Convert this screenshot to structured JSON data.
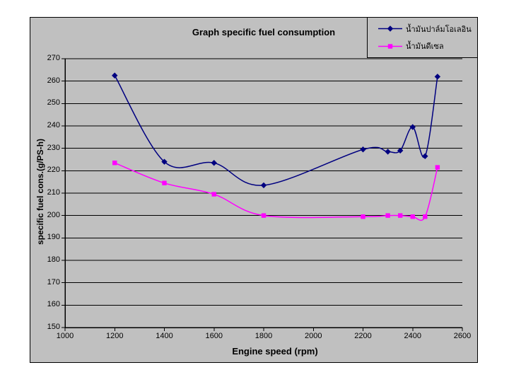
{
  "window": {
    "background": "#ffffff"
  },
  "chart": {
    "background": "#c0c0c0",
    "border_color": "#000000",
    "grid_color": "#000000",
    "axis_color": "#000000",
    "text_color": "#000000"
  },
  "chart_data": {
    "type": "line",
    "title": "Graph specific fuel consumption",
    "xlabel": "Engine speed (rpm)",
    "ylabel": "specific fuel cons.(g/PS-h)",
    "xlim": [
      1000,
      2600
    ],
    "ylim": [
      150,
      270
    ],
    "x_ticks": [
      1000,
      1200,
      1400,
      1600,
      1800,
      2000,
      2200,
      2400,
      2600
    ],
    "y_ticks": [
      150,
      160,
      170,
      180,
      190,
      200,
      210,
      220,
      230,
      240,
      250,
      260,
      270
    ],
    "grid": "horizontal-only",
    "legend_position": "top-right",
    "line_style": "smoothed",
    "series": [
      {
        "name": "น้ำมันปาล์มโอเลอิน",
        "color": "#000080",
        "marker": "diamond",
        "x": [
          1200,
          1400,
          1600,
          1800,
          2200,
          2300,
          2350,
          2400,
          2450,
          2500
        ],
        "y": [
          262.5,
          224,
          223.5,
          213.5,
          229.5,
          228.5,
          229,
          239.5,
          226.5,
          262
        ]
      },
      {
        "name": "น้ำมันดีเซล",
        "color": "#ff00ff",
        "marker": "square",
        "x": [
          1200,
          1400,
          1600,
          1800,
          2200,
          2300,
          2350,
          2400,
          2450,
          2500
        ],
        "y": [
          223.5,
          214.5,
          209.5,
          200,
          199.5,
          200,
          200,
          199.5,
          199.5,
          221.5
        ]
      }
    ]
  }
}
